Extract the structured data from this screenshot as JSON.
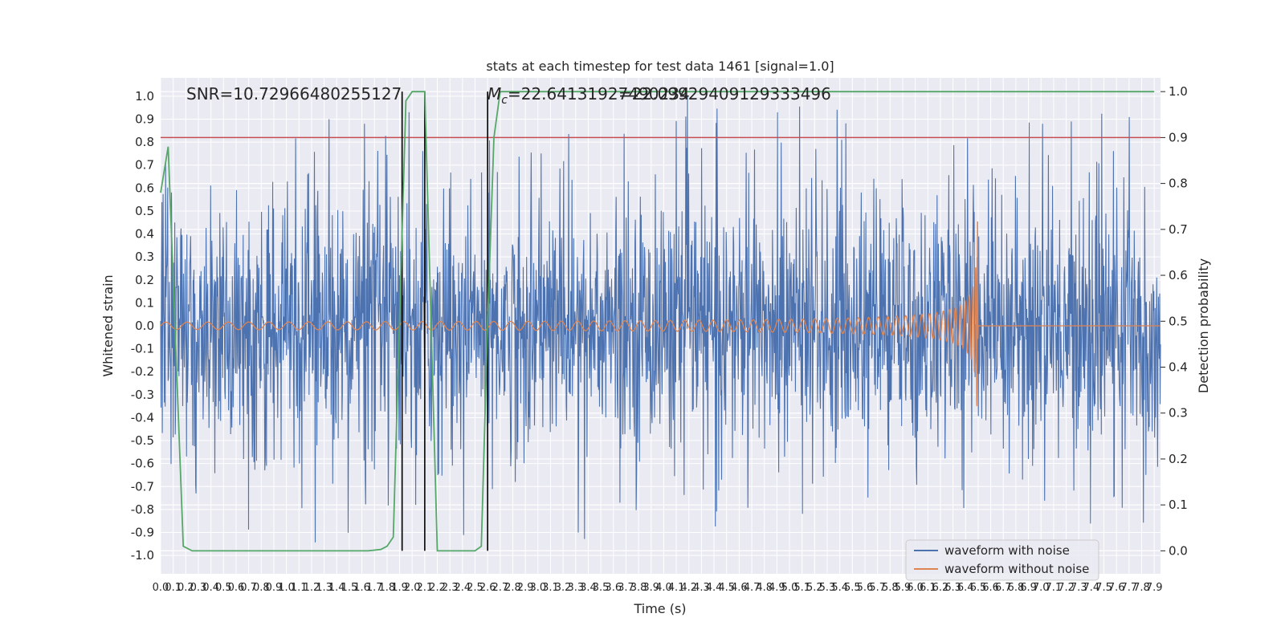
{
  "chart_data": {
    "type": "line",
    "title": "stats at each timestep for test data 1461 [signal=1.0]",
    "xlabel": "Time (s)",
    "ylabel_left": "Whitened strain",
    "ylabel_right": "Detection probability",
    "xlim": [
      0.0,
      7.95
    ],
    "ylim_left": [
      -1.08,
      1.08
    ],
    "ylim_right": [
      -0.05,
      1.03
    ],
    "x_ticks": [
      "0.0",
      "0.1",
      "0.2",
      "0.3",
      "0.4",
      "0.5",
      "0.6",
      "0.7",
      "0.8",
      "0.9",
      "1.0",
      "1.1",
      "1.2",
      "1.3",
      "1.4",
      "1.5",
      "1.6",
      "1.7",
      "1.8",
      "1.9",
      "2.0",
      "2.1",
      "2.2",
      "2.3",
      "2.4",
      "2.5",
      "2.6",
      "2.7",
      "2.8",
      "2.9",
      "3.0",
      "3.1",
      "3.2",
      "3.3",
      "3.4",
      "3.5",
      "3.6",
      "3.7",
      "3.8",
      "3.9",
      "4.0",
      "4.1",
      "4.2",
      "4.3",
      "4.4",
      "4.5",
      "4.6",
      "4.7",
      "4.8",
      "4.9",
      "5.0",
      "5.1",
      "5.2",
      "5.3",
      "5.4",
      "5.5",
      "5.6",
      "5.7",
      "5.8",
      "5.9",
      "6.0",
      "6.1",
      "6.2",
      "6.3",
      "6.4",
      "6.5",
      "6.6",
      "6.7",
      "6.8",
      "6.9",
      "7.0",
      "7.1",
      "7.2",
      "7.3",
      "7.4",
      "7.5",
      "7.6",
      "7.7",
      "7.8",
      "7.9"
    ],
    "y_ticks_left": [
      "1.0",
      "0.9",
      "0.8",
      "0.7",
      "0.6",
      "0.5",
      "0.4",
      "0.3",
      "0.2",
      "0.1",
      "0.0",
      "-0.1",
      "-0.2",
      "-0.3",
      "-0.4",
      "-0.5",
      "-0.6",
      "-0.7",
      "-0.8",
      "-0.9",
      "-1.0"
    ],
    "y_ticks_right": [
      "1.0",
      "0.9",
      "0.8",
      "0.7",
      "0.6",
      "0.5",
      "0.4",
      "0.3",
      "0.2",
      "0.1",
      "0.0"
    ],
    "annotations": {
      "snr": "SNR=10.72966480255127",
      "mc_symbol": "M",
      "mc_subscript": "c",
      "mc_value_a": "=22.64131927490234",
      "mc_value_b": "=22.09929409129333496"
    },
    "threshold": {
      "value": 0.9,
      "axis": "right",
      "color": "#c44e52"
    },
    "vertical_markers": [
      1.92,
      2.1,
      2.6
    ],
    "detection_probability": {
      "x": [
        0.0,
        0.06,
        0.18,
        0.25,
        1.65,
        1.75,
        1.8,
        1.85,
        1.95,
        2.0,
        2.1,
        2.15,
        2.2,
        2.5,
        2.55,
        2.6,
        2.65,
        2.7,
        7.9
      ],
      "y": [
        0.78,
        0.88,
        0.01,
        0.0,
        0.0,
        0.003,
        0.01,
        0.03,
        0.98,
        1.0,
        1.0,
        0.5,
        0.0,
        0.0,
        0.01,
        0.5,
        0.9,
        1.0,
        1.0
      ]
    },
    "series": [
      {
        "name": "waveform with noise",
        "color": "#4c72b0",
        "axis": "left",
        "noise_amplitude": 0.43,
        "range": [
          -0.98,
          1.0
        ]
      },
      {
        "name": "waveform without noise",
        "color": "#dd8452",
        "axis": "left",
        "chirp_peak_time": 6.5,
        "chirp_peak_amplitude": 0.48
      },
      {
        "name": "detection probability",
        "color": "#55a868",
        "axis": "right"
      }
    ],
    "legend_position": "lower right",
    "grid": true,
    "background": "#eaeaf2"
  }
}
